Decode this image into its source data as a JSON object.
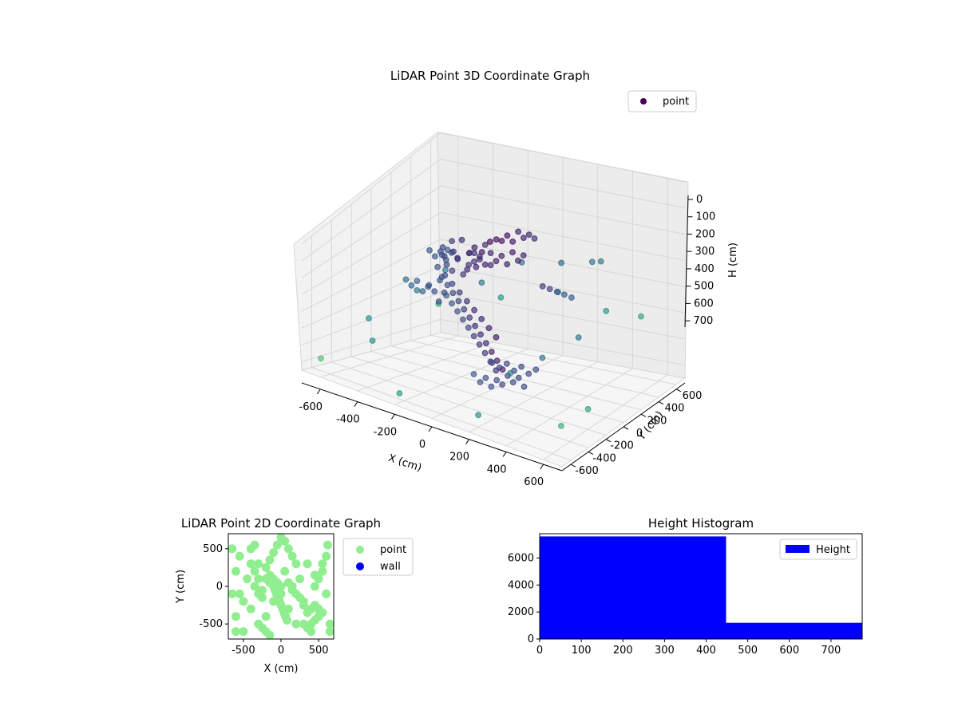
{
  "chart_data": [
    {
      "id": "scatter3d",
      "type": "scatter",
      "title": "LiDAR Point 3D Coordinate Graph",
      "xlabel": "X (cm)",
      "ylabel": "Y (cm)",
      "zlabel": "H (cm)",
      "xlim": [
        -700,
        700
      ],
      "ylim": [
        -700,
        700
      ],
      "zlim": [
        0,
        750
      ],
      "z_inverted": true,
      "xticks": [
        -600,
        -400,
        -200,
        0,
        200,
        400,
        600
      ],
      "yticks": [
        -600,
        -400,
        -200,
        0,
        200,
        400,
        600
      ],
      "zticks": [
        0,
        100,
        200,
        300,
        400,
        500,
        600,
        700
      ],
      "grid": true,
      "legend_position": "upper-right",
      "colormap": "viridis",
      "series": [
        {
          "name": "point",
          "color": "#440154",
          "points": [
            [
              -250,
              -100,
              150
            ],
            [
              -230,
              -120,
              180
            ],
            [
              -210,
              -80,
              120
            ],
            [
              -190,
              -60,
              200
            ],
            [
              -170,
              -140,
              140
            ],
            [
              -150,
              -90,
              100
            ],
            [
              -130,
              -50,
              170
            ],
            [
              -110,
              -110,
              220
            ],
            [
              -90,
              -70,
              130
            ],
            [
              -70,
              -30,
              160
            ],
            [
              -50,
              -130,
              190
            ],
            [
              -30,
              -20,
              110
            ],
            [
              -260,
              -40,
              250
            ],
            [
              -240,
              -20,
              280
            ],
            [
              -220,
              0,
              230
            ],
            [
              -200,
              20,
              300
            ],
            [
              -180,
              40,
              260
            ],
            [
              -160,
              60,
              210
            ],
            [
              -140,
              80,
              240
            ],
            [
              -120,
              100,
              180
            ],
            [
              -100,
              120,
              270
            ],
            [
              -300,
              -150,
              320
            ],
            [
              -280,
              -130,
              350
            ],
            [
              -260,
              -110,
              300
            ],
            [
              -240,
              -160,
              380
            ],
            [
              -220,
              -140,
              340
            ],
            [
              -50,
              -200,
              100
            ],
            [
              -30,
              -190,
              140
            ],
            [
              -10,
              -170,
              120
            ],
            [
              10,
              -150,
              160
            ],
            [
              30,
              -130,
              110
            ],
            [
              50,
              -110,
              150
            ],
            [
              70,
              -90,
              130
            ],
            [
              90,
              -70,
              170
            ],
            [
              110,
              -50,
              120
            ],
            [
              130,
              -30,
              160
            ],
            [
              150,
              -10,
              140
            ],
            [
              -150,
              -300,
              200
            ],
            [
              -130,
              -280,
              240
            ],
            [
              -110,
              -260,
              280
            ],
            [
              -90,
              -240,
              320
            ],
            [
              -70,
              -220,
              360
            ],
            [
              -50,
              -200,
              400
            ],
            [
              -30,
              -180,
              440
            ],
            [
              -10,
              -160,
              480
            ],
            [
              10,
              -140,
              520
            ],
            [
              30,
              -120,
              560
            ],
            [
              50,
              -100,
              600
            ],
            [
              70,
              -80,
              640
            ],
            [
              -200,
              -250,
              180
            ],
            [
              -170,
              -230,
              220
            ],
            [
              -140,
              -210,
              260
            ],
            [
              -110,
              -190,
              300
            ],
            [
              -80,
              -170,
              340
            ],
            [
              -50,
              -150,
              380
            ],
            [
              -20,
              -130,
              420
            ],
            [
              10,
              -110,
              460
            ],
            [
              40,
              -90,
              500
            ],
            [
              -100,
              -350,
              260
            ],
            [
              -80,
              -330,
              300
            ],
            [
              -60,
              -310,
              340
            ],
            [
              -40,
              -290,
              380
            ],
            [
              -20,
              -270,
              420
            ],
            [
              0,
              -250,
              460
            ],
            [
              20,
              -230,
              500
            ],
            [
              40,
              -210,
              540
            ],
            [
              60,
              -190,
              580
            ],
            [
              80,
              -170,
              620
            ],
            [
              50,
              -350,
              600
            ],
            [
              70,
              -320,
              640
            ],
            [
              90,
              -300,
              620
            ],
            [
              110,
              -280,
              660
            ],
            [
              130,
              -260,
              630
            ],
            [
              150,
              -240,
              650
            ],
            [
              170,
              -220,
              610
            ],
            [
              190,
              -200,
              640
            ],
            [
              210,
              -180,
              620
            ],
            [
              230,
              -160,
              660
            ],
            [
              100,
              -250,
              560
            ],
            [
              130,
              -230,
              580
            ],
            [
              160,
              -210,
              560
            ],
            [
              190,
              -190,
              590
            ],
            [
              220,
              -170,
              570
            ],
            [
              250,
              -150,
              600
            ],
            [
              280,
              -130,
              580
            ],
            [
              20,
              -50,
              80
            ],
            [
              40,
              -30,
              90
            ],
            [
              60,
              -10,
              70
            ],
            [
              80,
              10,
              100
            ],
            [
              100,
              30,
              60
            ],
            [
              120,
              50,
              90
            ],
            [
              140,
              70,
              80
            ],
            [
              160,
              90,
              100
            ],
            [
              -350,
              -50,
              200
            ],
            [
              -330,
              -30,
              230
            ],
            [
              -310,
              -10,
              210
            ],
            [
              -290,
              10,
              250
            ],
            [
              -270,
              30,
              220
            ],
            [
              -350,
              80,
              260
            ],
            [
              -330,
              100,
              240
            ],
            [
              -400,
              -200,
              300
            ],
            [
              -380,
              -180,
              330
            ],
            [
              -360,
              -160,
              310
            ],
            [
              -340,
              -140,
              360
            ],
            [
              -320,
              -120,
              340
            ],
            [
              200,
              100,
              300
            ],
            [
              220,
              140,
              320
            ],
            [
              240,
              180,
              340
            ],
            [
              260,
              220,
              360
            ],
            [
              280,
              260,
              380
            ],
            [
              -450,
              300,
              400
            ],
            [
              -300,
              400,
              450
            ],
            [
              -100,
              450,
              350
            ],
            [
              150,
              400,
              300
            ],
            [
              350,
              350,
              250
            ],
            [
              450,
              250,
              200
            ],
            [
              -550,
              -300,
              500
            ],
            [
              -500,
              100,
              450
            ],
            [
              -450,
              -450,
              550
            ],
            [
              300,
              -450,
              500
            ],
            [
              400,
              -300,
              450
            ],
            [
              500,
              -100,
              400
            ],
            [
              -600,
              500,
              600
            ],
            [
              -300,
              600,
              550
            ],
            [
              0,
              650,
              500
            ],
            [
              300,
              600,
              520
            ],
            [
              550,
              500,
              480
            ],
            [
              600,
              -500,
              650
            ],
            [
              650,
              -300,
              620
            ],
            [
              -650,
              -600,
              680
            ],
            [
              -200,
              -650,
              700
            ],
            [
              200,
              -600,
              690
            ]
          ]
        }
      ]
    },
    {
      "id": "scatter2d",
      "type": "scatter",
      "title": "LiDAR Point 2D Coordinate Graph",
      "xlabel": "X (cm)",
      "ylabel": "Y (cm)",
      "xlim": [
        -700,
        700
      ],
      "ylim": [
        -700,
        700
      ],
      "xticks": [
        -500,
        0,
        500
      ],
      "yticks": [
        -500,
        0,
        500
      ],
      "legend_position": "outside-right",
      "series": [
        {
          "name": "point",
          "color": "#90ee90",
          "points": [
            [
              -600,
              200
            ],
            [
              -550,
              400
            ],
            [
              -500,
              -600
            ],
            [
              -450,
              100
            ],
            [
              -400,
              -300
            ],
            [
              -350,
              0
            ],
            [
              -300,
              300
            ],
            [
              -250,
              -150
            ],
            [
              -200,
              -400
            ],
            [
              -150,
              150
            ],
            [
              -100,
              -200
            ],
            [
              -50,
              50
            ],
            [
              0,
              -100
            ],
            [
              50,
              200
            ],
            [
              100,
              -300
            ],
            [
              150,
              0
            ],
            [
              200,
              -500
            ],
            [
              250,
              100
            ],
            [
              300,
              -200
            ],
            [
              350,
              300
            ],
            [
              400,
              -600
            ],
            [
              450,
              0
            ],
            [
              500,
              -400
            ],
            [
              550,
              200
            ],
            [
              600,
              -100
            ],
            [
              650,
              -600
            ],
            [
              -650,
              -100
            ],
            [
              -600,
              -400
            ],
            [
              0,
              650
            ],
            [
              50,
              600
            ],
            [
              -50,
              550
            ],
            [
              100,
              500
            ],
            [
              -100,
              450
            ],
            [
              150,
              400
            ],
            [
              -150,
              350
            ],
            [
              200,
              300
            ],
            [
              -200,
              250
            ],
            [
              -100,
              0
            ],
            [
              -80,
              -50
            ],
            [
              -60,
              -100
            ],
            [
              -40,
              -150
            ],
            [
              -20,
              -200
            ],
            [
              0,
              -250
            ],
            [
              20,
              -300
            ],
            [
              40,
              -350
            ],
            [
              60,
              -400
            ],
            [
              80,
              -450
            ],
            [
              -300,
              -500
            ],
            [
              -250,
              -550
            ],
            [
              -200,
              -600
            ],
            [
              -150,
              -650
            ],
            [
              300,
              -500
            ],
            [
              350,
              -550
            ],
            [
              400,
              -500
            ],
            [
              450,
              -450
            ],
            [
              -400,
              500
            ],
            [
              -350,
              550
            ],
            [
              -500,
              -200
            ],
            [
              -550,
              -100
            ],
            [
              500,
              100
            ],
            [
              450,
              150
            ],
            [
              600,
              400
            ],
            [
              550,
              300
            ],
            [
              -200,
              100
            ],
            [
              -150,
              50
            ],
            [
              -100,
              100
            ],
            [
              0,
              0
            ],
            [
              100,
              50
            ],
            [
              150,
              -50
            ],
            [
              200,
              -100
            ],
            [
              250,
              -150
            ],
            [
              300,
              -250
            ],
            [
              350,
              -350
            ],
            [
              400,
              -300
            ],
            [
              450,
              -250
            ],
            [
              500,
              -300
            ],
            [
              550,
              -350
            ],
            [
              -300,
              -100
            ],
            [
              -250,
              -50
            ],
            [
              -300,
              100
            ],
            [
              -350,
              200
            ],
            [
              -400,
              300
            ],
            [
              -600,
              -600
            ],
            [
              -650,
              500
            ],
            [
              620,
              550
            ],
            [
              650,
              -500
            ]
          ]
        },
        {
          "name": "wall",
          "color": "#0000ff",
          "points": []
        }
      ]
    },
    {
      "id": "histogram",
      "type": "bar",
      "title": "Height Histogram",
      "xlim": [
        0,
        775
      ],
      "ylim": [
        0,
        7800
      ],
      "xticks": [
        0,
        100,
        200,
        300,
        400,
        500,
        600,
        700
      ],
      "yticks": [
        0,
        2000,
        4000,
        6000
      ],
      "legend_position": "upper-right",
      "series": [
        {
          "name": "Height",
          "color": "#0000ff",
          "bins": [
            [
              0,
              448,
              7600
            ],
            [
              448,
              775,
              1200
            ]
          ]
        }
      ]
    }
  ]
}
